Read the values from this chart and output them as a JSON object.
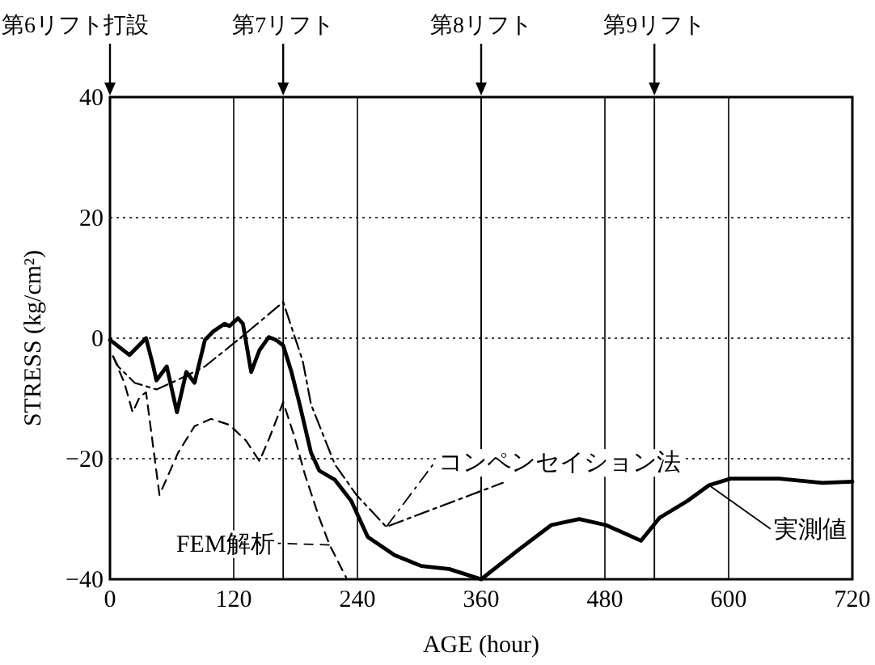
{
  "chart_data": {
    "type": "line",
    "xlabel": "AGE (hour)",
    "ylabel": "STRESS (kg/cm²)",
    "xlim": [
      0,
      720
    ],
    "xticks": [
      0,
      120,
      240,
      360,
      480,
      600,
      720
    ],
    "ylim": [
      -40,
      40
    ],
    "yticks": [
      -40,
      -20,
      0,
      20,
      40
    ],
    "grid": true,
    "ref_lines": [
      {
        "axis": "x",
        "value": 0,
        "label": "第6リフト打設"
      },
      {
        "axis": "x",
        "value": 168,
        "label": "第7リフト"
      },
      {
        "axis": "x",
        "value": 360,
        "label": "第8リフト"
      },
      {
        "axis": "x",
        "value": 528,
        "label": "第9リフト"
      }
    ],
    "series": [
      {
        "name": "実測値",
        "color": "#000000",
        "line_style": "solid",
        "x": [
          0,
          19,
          35,
          42,
          45,
          55,
          65,
          74,
          82,
          92,
          100,
          111,
          116,
          124,
          129,
          137,
          145,
          154,
          161,
          168,
          176,
          184,
          195,
          203,
          218,
          234,
          250,
          276,
          302,
          329,
          360,
          397,
          428,
          455,
          481,
          515,
          533,
          560,
          581,
          602,
          649,
          691,
          720
        ],
        "values": [
          -0.3,
          -2.8,
          0,
          -4.7,
          -7,
          -4.7,
          -12.3,
          -5.6,
          -7.4,
          -0.3,
          1.1,
          2.4,
          2,
          3.3,
          2.4,
          -5.6,
          -2,
          0.2,
          -0.3,
          -1.2,
          -5.6,
          -11,
          -19,
          -22,
          -23.5,
          -27,
          -33,
          -36,
          -37.8,
          -38.3,
          -40,
          -35,
          -31,
          -30,
          -31,
          -33.6,
          -29.8,
          -27,
          -24.4,
          -23.3,
          -23.3,
          -24,
          -23.8
        ]
      },
      {
        "name": "FEM解析",
        "color": "#000000",
        "line_style": "dashed",
        "x": [
          3,
          14,
          22,
          29,
          35,
          48,
          66,
          82,
          98,
          116,
          132,
          145,
          155,
          168,
          179,
          189,
          203,
          213,
          229
        ],
        "values": [
          -3,
          -7.4,
          -12.3,
          -9.7,
          -9,
          -26,
          -19,
          -14.6,
          -13.4,
          -14.4,
          -17,
          -20.4,
          -16.4,
          -10.6,
          -16.4,
          -22.6,
          -29.8,
          -34.3,
          -39.7
        ]
      },
      {
        "name": "コンペンセイション法",
        "color": "#000000",
        "line_style": "dashdot",
        "x": [
          3,
          8,
          24,
          45,
          66,
          92,
          124,
          168,
          187,
          195,
          218,
          239,
          268,
          381
        ],
        "values": [
          -3,
          -4.7,
          -7.4,
          -8.5,
          -6.9,
          -4.7,
          -0.3,
          6,
          -3.8,
          -11,
          -20.9,
          -26,
          -31.3,
          -24
        ]
      }
    ]
  }
}
